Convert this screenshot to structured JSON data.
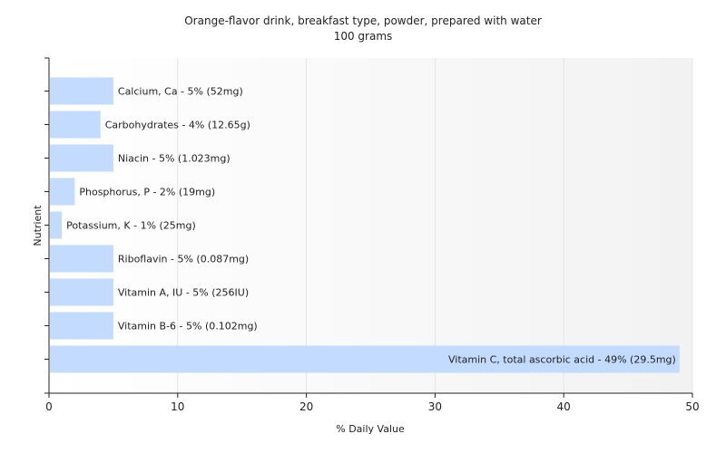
{
  "colors": {
    "bar": "#c2dbff",
    "grid": "#e4e4e4",
    "plot_bg_left": "#ffffff",
    "plot_bg_right": "#f2f2f2",
    "axis": "#222222"
  },
  "chart_data": {
    "type": "bar",
    "orientation": "horizontal",
    "title": "Orange-flavor drink, breakfast type, powder, prepared with water",
    "subtitle": "100 grams",
    "xlabel": "% Daily Value",
    "ylabel": "Nutrient",
    "xlim": [
      0,
      50
    ],
    "xticks": [
      0,
      10,
      20,
      30,
      40,
      50
    ],
    "grid": true,
    "categories": [
      "Calcium, Ca",
      "Carbohydrates",
      "Niacin",
      "Phosphorus, P",
      "Potassium, K",
      "Riboflavin",
      "Vitamin A, IU",
      "Vitamin B-6",
      "Vitamin C, total ascorbic acid"
    ],
    "values": [
      5,
      4,
      5,
      2,
      1,
      5,
      5,
      5,
      49
    ],
    "data_labels": [
      "Calcium, Ca - 5% (52mg)",
      "Carbohydrates - 4% (12.65g)",
      "Niacin - 5% (1.023mg)",
      "Phosphorus, P - 2% (19mg)",
      "Potassium, K - 1% (25mg)",
      "Riboflavin - 5% (0.087mg)",
      "Vitamin A, IU - 5% (256IU)",
      "Vitamin B-6 - 5% (0.102mg)",
      "Vitamin C, total ascorbic acid - 49% (29.5mg)"
    ]
  }
}
